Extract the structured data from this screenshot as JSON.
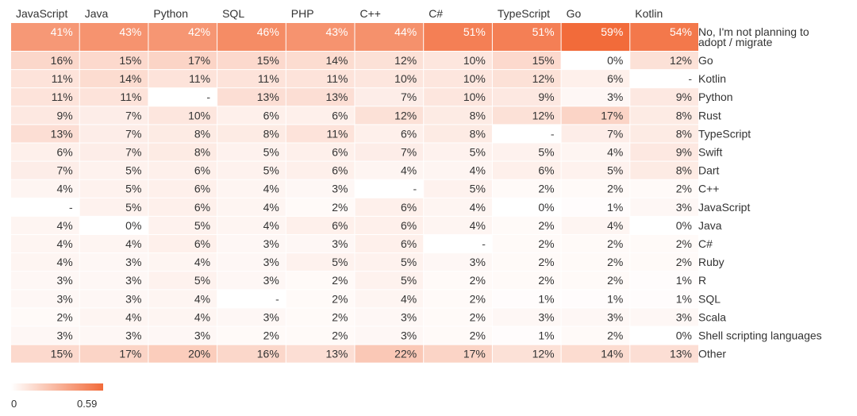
{
  "chart_data": {
    "type": "heatmap",
    "columns": [
      "JavaScript",
      "Java",
      "Python",
      "SQL",
      "PHP",
      "C++",
      "C#",
      "TypeScript",
      "Go",
      "Kotlin"
    ],
    "rows": [
      {
        "label": [
          "No, I'm not planning to",
          "adopt / migrate"
        ],
        "values": [
          0.41,
          0.43,
          0.42,
          0.46,
          0.43,
          0.44,
          0.51,
          0.51,
          0.59,
          0.54
        ]
      },
      {
        "label": [
          "Go"
        ],
        "values": [
          0.16,
          0.15,
          0.17,
          0.15,
          0.14,
          0.12,
          0.1,
          0.15,
          0.0,
          0.12
        ]
      },
      {
        "label": [
          "Kotlin"
        ],
        "values": [
          0.11,
          0.14,
          0.11,
          0.11,
          0.11,
          0.1,
          0.1,
          0.12,
          0.06,
          null
        ]
      },
      {
        "label": [
          "Python"
        ],
        "values": [
          0.11,
          0.11,
          null,
          0.13,
          0.13,
          0.07,
          0.1,
          0.09,
          0.03,
          0.09
        ]
      },
      {
        "label": [
          "Rust"
        ],
        "values": [
          0.09,
          0.07,
          0.1,
          0.06,
          0.06,
          0.12,
          0.08,
          0.12,
          0.17,
          0.08
        ]
      },
      {
        "label": [
          "TypeScript"
        ],
        "values": [
          0.13,
          0.07,
          0.08,
          0.08,
          0.11,
          0.06,
          0.08,
          null,
          0.07,
          0.08
        ]
      },
      {
        "label": [
          "Swift"
        ],
        "values": [
          0.06,
          0.07,
          0.08,
          0.05,
          0.06,
          0.07,
          0.05,
          0.05,
          0.04,
          0.09
        ]
      },
      {
        "label": [
          "Dart"
        ],
        "values": [
          0.07,
          0.05,
          0.06,
          0.05,
          0.06,
          0.04,
          0.04,
          0.06,
          0.05,
          0.08
        ]
      },
      {
        "label": [
          "C++"
        ],
        "values": [
          0.04,
          0.05,
          0.06,
          0.04,
          0.03,
          null,
          0.05,
          0.02,
          0.02,
          0.02
        ]
      },
      {
        "label": [
          "JavaScript"
        ],
        "values": [
          null,
          0.05,
          0.06,
          0.04,
          0.02,
          0.06,
          0.04,
          0.0,
          0.01,
          0.03
        ]
      },
      {
        "label": [
          "Java"
        ],
        "values": [
          0.04,
          0.0,
          0.05,
          0.04,
          0.06,
          0.06,
          0.04,
          0.02,
          0.04,
          0.0
        ]
      },
      {
        "label": [
          "C#"
        ],
        "values": [
          0.04,
          0.04,
          0.06,
          0.03,
          0.03,
          0.06,
          null,
          0.02,
          0.02,
          0.02
        ]
      },
      {
        "label": [
          "Ruby"
        ],
        "values": [
          0.04,
          0.03,
          0.04,
          0.03,
          0.05,
          0.05,
          0.03,
          0.02,
          0.02,
          0.02
        ]
      },
      {
        "label": [
          "R"
        ],
        "values": [
          0.03,
          0.03,
          0.05,
          0.03,
          0.02,
          0.05,
          0.02,
          0.02,
          0.02,
          0.01
        ]
      },
      {
        "label": [
          "SQL"
        ],
        "values": [
          0.03,
          0.03,
          0.04,
          null,
          0.02,
          0.04,
          0.02,
          0.01,
          0.01,
          0.01
        ]
      },
      {
        "label": [
          "Scala"
        ],
        "values": [
          0.02,
          0.04,
          0.04,
          0.03,
          0.02,
          0.03,
          0.02,
          0.03,
          0.03,
          0.03
        ]
      },
      {
        "label": [
          "Shell scripting languages"
        ],
        "values": [
          0.03,
          0.03,
          0.03,
          0.02,
          0.02,
          0.03,
          0.02,
          0.01,
          0.02,
          0.0
        ]
      },
      {
        "label": [
          "Other"
        ],
        "values": [
          0.15,
          0.17,
          0.2,
          0.16,
          0.13,
          0.22,
          0.17,
          0.12,
          0.14,
          0.13
        ]
      }
    ],
    "value_format": "percent",
    "missing_label": "-",
    "color_scale": {
      "min": 0,
      "max": 0.59,
      "min_color": "#ffffff",
      "max_color": "#f26b3a"
    },
    "legend": {
      "min_label": "0",
      "max_label": "0.59",
      "position": "bottom-left"
    }
  }
}
